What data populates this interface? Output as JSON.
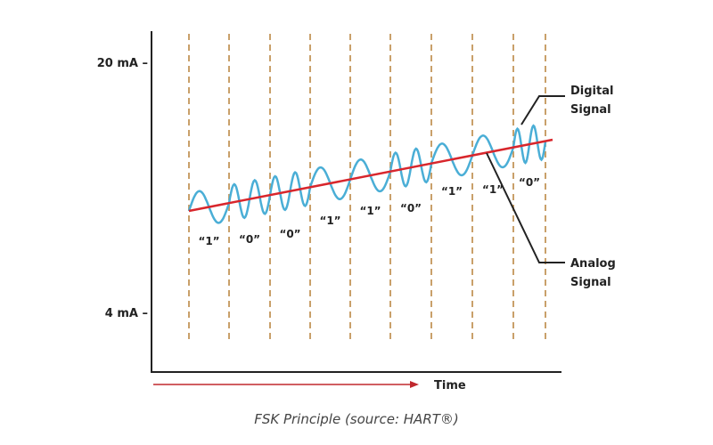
{
  "y_axis": {
    "ticks": [
      {
        "label": "20 mA –",
        "value": 20
      },
      {
        "label": "4 mA –",
        "value": 4
      }
    ]
  },
  "x_axis": {
    "label": "Time"
  },
  "bits": [
    "“1”",
    "“0”",
    "“0”",
    "“1”",
    "“1”",
    "“0”",
    "“1”",
    "“1”",
    "“0”"
  ],
  "bit_values": [
    1,
    0,
    0,
    1,
    1,
    0,
    1,
    1,
    0
  ],
  "callouts": {
    "digital": [
      "Digital",
      "Signal"
    ],
    "analog": [
      "Analog",
      "Signal"
    ]
  },
  "caption": "FSK Principle (source: HART®)",
  "colors": {
    "digital_wave": "#4aaed6",
    "analog_line": "#d8262c",
    "divider": "#c9a06a",
    "axis": "#222222",
    "time_arrow": "#c0282e"
  }
}
